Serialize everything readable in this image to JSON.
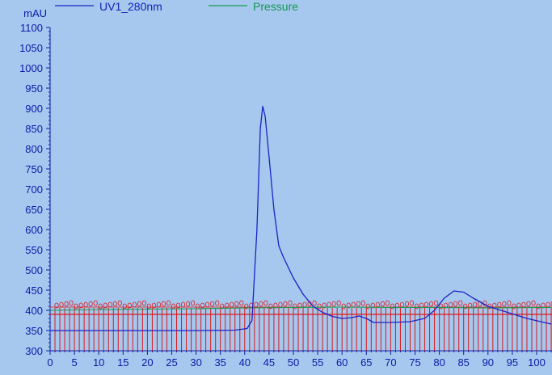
{
  "chart_data": {
    "type": "line",
    "ylabel": "mAU",
    "xlim": [
      0,
      103
    ],
    "ylim": [
      300,
      1100
    ],
    "x_ticks": [
      0,
      5,
      10,
      15,
      20,
      25,
      30,
      35,
      40,
      45,
      50,
      55,
      60,
      65,
      70,
      75,
      80,
      85,
      90,
      95,
      100
    ],
    "y_ticks": [
      300,
      350,
      400,
      450,
      500,
      550,
      600,
      650,
      700,
      750,
      800,
      850,
      900,
      950,
      1000,
      1050,
      1100
    ],
    "grid": false,
    "legend_position": "top-left",
    "series": [
      {
        "name": "UV1_280nm",
        "color": "#1a22c8",
        "x": [
          0,
          10,
          20,
          30,
          38,
          40.5,
          41.5,
          42.5,
          43.2,
          43.7,
          44.2,
          45,
          46,
          47,
          48,
          50,
          52,
          54,
          56,
          58,
          60,
          62,
          63.5,
          65,
          66.5,
          70,
          74,
          77,
          79,
          81,
          83,
          85,
          87,
          90,
          94,
          98,
          103
        ],
        "values": [
          350,
          350,
          350,
          350,
          351,
          355,
          375,
          600,
          850,
          905,
          880,
          780,
          650,
          560,
          530,
          480,
          440,
          410,
          395,
          385,
          380,
          382,
          386,
          380,
          370,
          370,
          372,
          380,
          400,
          430,
          448,
          445,
          430,
          410,
          395,
          380,
          366
        ]
      },
      {
        "name": "Pressure",
        "color": "#1a9a50",
        "x": [
          0,
          10,
          20,
          30,
          40,
          50,
          60,
          70,
          80,
          90,
          100,
          103
        ],
        "values": [
          400,
          402,
          403,
          404,
          406,
          407,
          408,
          407,
          407,
          406,
          407,
          407
        ]
      }
    ],
    "fraction_marks": {
      "color": "#dd1818",
      "x_start": 1,
      "x_end": 103,
      "step": 1,
      "level": 390
    }
  }
}
